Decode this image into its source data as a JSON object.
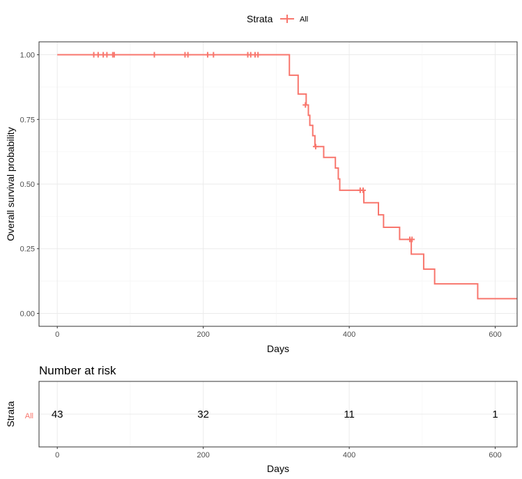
{
  "chart_data": [
    {
      "type": "line",
      "subtype": "kaplan-meier-step",
      "legend": {
        "title": "Strata",
        "position": "top",
        "entries": [
          "All"
        ]
      },
      "xlabel": "Days",
      "ylabel": "Overall survival probability",
      "xlim": [
        -25,
        630
      ],
      "ylim": [
        -0.05,
        1.05
      ],
      "xticks": [
        0,
        200,
        400,
        600
      ],
      "yticks": [
        0.0,
        0.25,
        0.5,
        0.75,
        1.0
      ],
      "ytick_labels": [
        "0.00",
        "0.25",
        "0.50",
        "0.75",
        "1.00"
      ],
      "grid": true,
      "series": [
        {
          "name": "All",
          "color": "#F8766D",
          "steps": [
            [
              0,
              1.0
            ],
            [
              318,
              0.921
            ],
            [
              330,
              0.848
            ],
            [
              341,
              0.806
            ],
            [
              344,
              0.766
            ],
            [
              346,
              0.727
            ],
            [
              350,
              0.687
            ],
            [
              353,
              0.645
            ],
            [
              365,
              0.603
            ],
            [
              381,
              0.562
            ],
            [
              385,
              0.52
            ],
            [
              387,
              0.476
            ],
            [
              420,
              0.428
            ],
            [
              440,
              0.381
            ],
            [
              447,
              0.333
            ],
            [
              469,
              0.286
            ],
            [
              485,
              0.229
            ],
            [
              502,
              0.171
            ],
            [
              517,
              0.114
            ],
            [
              576,
              0.057
            ],
            [
              630,
              0.057
            ]
          ],
          "censored": [
            [
              50,
              1.0
            ],
            [
              56,
              1.0
            ],
            [
              63,
              1.0
            ],
            [
              68,
              1.0
            ],
            [
              76,
              1.0
            ],
            [
              78,
              1.0
            ],
            [
              133,
              1.0
            ],
            [
              175,
              1.0
            ],
            [
              179,
              1.0
            ],
            [
              206,
              1.0
            ],
            [
              214,
              1.0
            ],
            [
              261,
              1.0
            ],
            [
              265,
              1.0
            ],
            [
              271,
              1.0
            ],
            [
              275,
              1.0
            ],
            [
              340,
              0.806
            ],
            [
              354,
              0.645
            ],
            [
              415,
              0.476
            ],
            [
              419,
              0.476
            ],
            [
              483,
              0.286
            ],
            [
              486,
              0.286
            ]
          ]
        }
      ]
    },
    {
      "type": "table",
      "title": "Number at risk",
      "xlabel": "Days",
      "ylabel": "Strata",
      "xlim": [
        -25,
        630
      ],
      "xticks": [
        0,
        200,
        400,
        600
      ],
      "rows": [
        {
          "label": "All",
          "color": "#F8766D",
          "times": [
            0,
            200,
            400,
            600
          ],
          "values": [
            43,
            32,
            11,
            1
          ]
        }
      ]
    }
  ]
}
